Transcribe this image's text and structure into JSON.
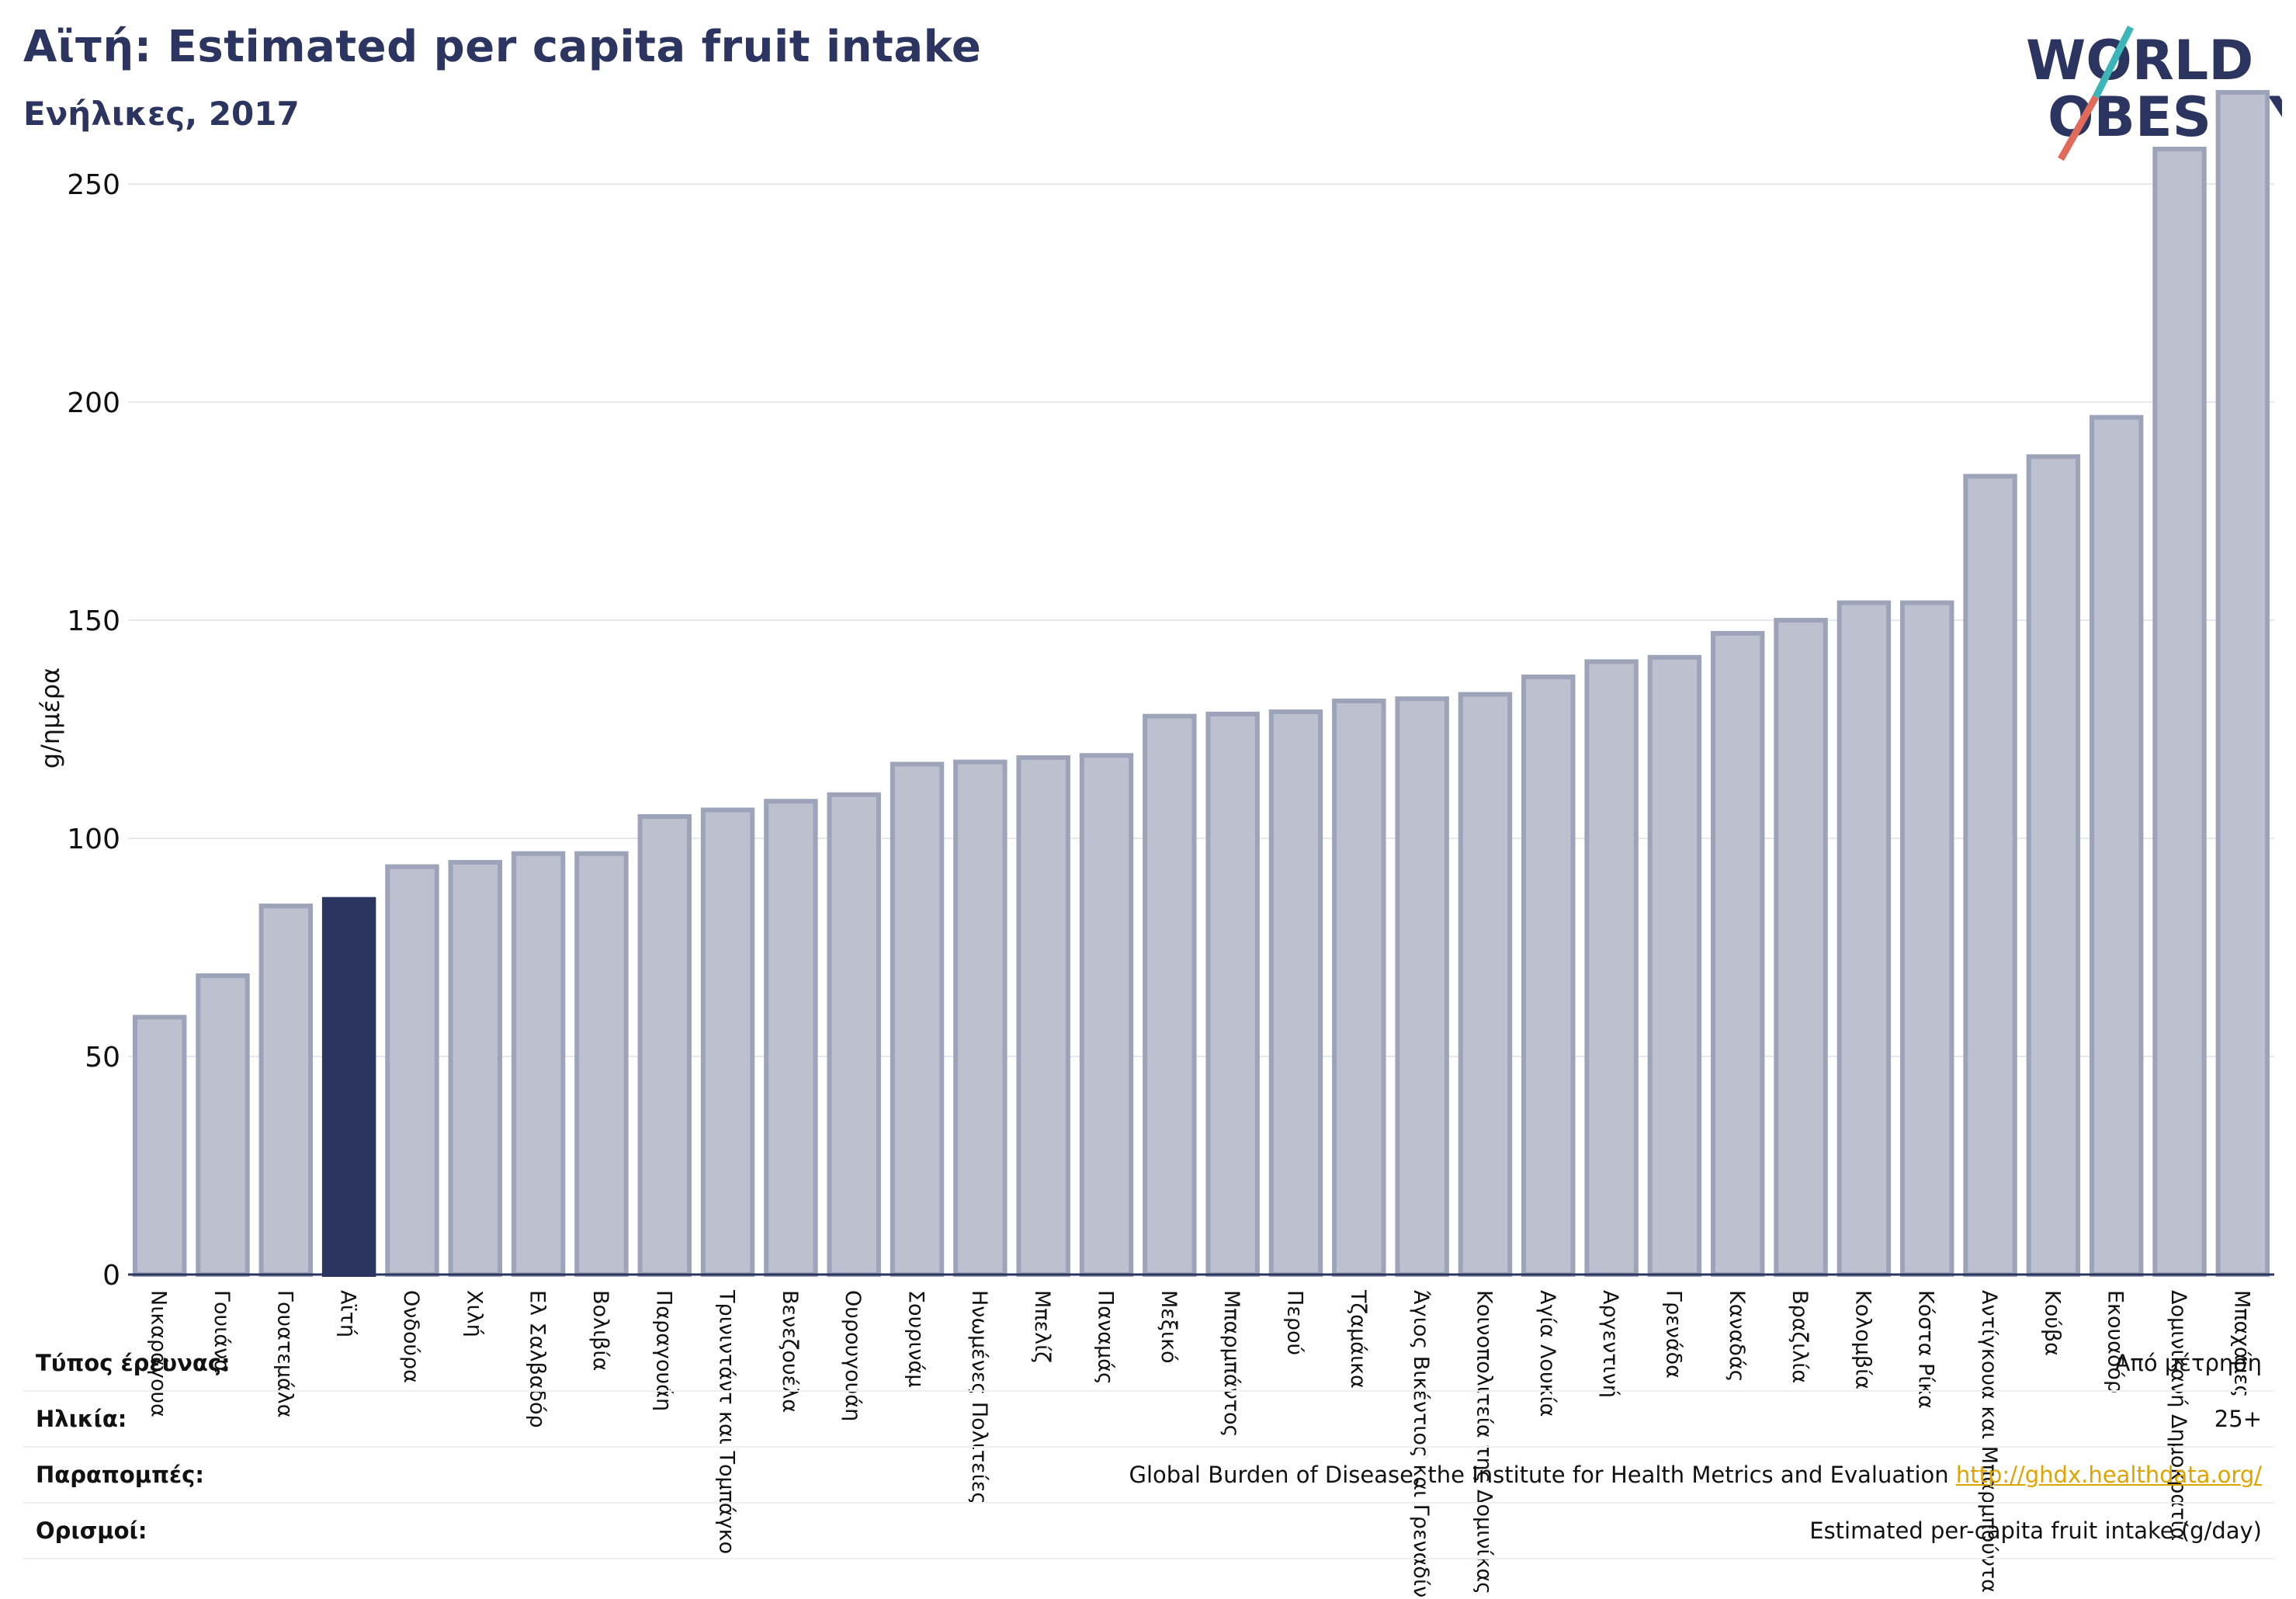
{
  "title": "Αϊτή: Estimated per capita fruit intake",
  "subtitle": "Ενήλικες, 2017",
  "logo": {
    "line1": "WORLD",
    "line2": "OBESITY"
  },
  "colors": {
    "bar": "#bcc0cf",
    "bar_border": "#9da3b8",
    "highlight": "#2b3560",
    "title": "#2b3560",
    "link": "#e0a400",
    "grid": "#e6e8ee",
    "logo_teal": "#3bb5b8",
    "logo_red": "#e26a5a"
  },
  "chart_data": {
    "type": "bar",
    "ylabel": "g/ημέρα",
    "ylim": [
      0,
      275
    ],
    "yticks": [
      0,
      50,
      100,
      150,
      200,
      250
    ],
    "grid": true,
    "highlight_category": "Αϊτή",
    "categories": [
      "Νικαράγουα",
      "Γουιάνα",
      "Γουατεμάλα",
      "Αϊτή",
      "Ονδούρα",
      "Χιλή",
      "Ελ Σαλβαδόρ",
      "Βολιβία",
      "Παραγουάη",
      "Τρινιντάντ και Τομπάγκο",
      "Βενεζουέλα",
      "Ουρουγουάη",
      "Σουρινάμ",
      "Ηνωμένες Πολιτείες",
      "Μπελίζ",
      "Παναμάς",
      "Μεξικό",
      "Μπαρμπάντος",
      "Περού",
      "Τζαμάικα",
      "Άγιος Βικέντιος και Γρεναδίνες",
      "Κοινοπολιτεία της Δομινίκας",
      "Αγία Λουκία",
      "Αργεντινή",
      "Γρενάδα",
      "Καναδάς",
      "Βραζιλία",
      "Κολομβία",
      "Κόστα Ρίκα",
      "Αντίγκουα και Μπαρμπούντα",
      "Κούβα",
      "Εκουαδόρ",
      "Δομινικανή Δημοκρατία",
      "Μπαχάμες"
    ],
    "values": [
      59,
      68.5,
      84.5,
      86,
      93.5,
      94.5,
      96.5,
      96.5,
      105,
      106.5,
      108.5,
      110,
      117,
      117.5,
      118.5,
      119,
      128,
      128.5,
      129,
      131.5,
      132,
      133,
      137,
      140.5,
      141.5,
      147,
      150,
      154,
      154,
      183,
      187.5,
      196.5,
      258,
      271
    ]
  },
  "footer": {
    "rows": [
      {
        "key": "Τύπος έρευνας:",
        "value": "Από μέτρηση"
      },
      {
        "key": "Ηλικία:",
        "value": "25+"
      },
      {
        "key": "Παραπομπές:",
        "value": "Global Burden of Disease, the Institute for Health Metrics and Evaluation",
        "link": "http://ghdx.healthdata.org/"
      },
      {
        "key": "Ορισμοί:",
        "value": "Estimated per-capita fruit intake (g/day)"
      }
    ]
  }
}
